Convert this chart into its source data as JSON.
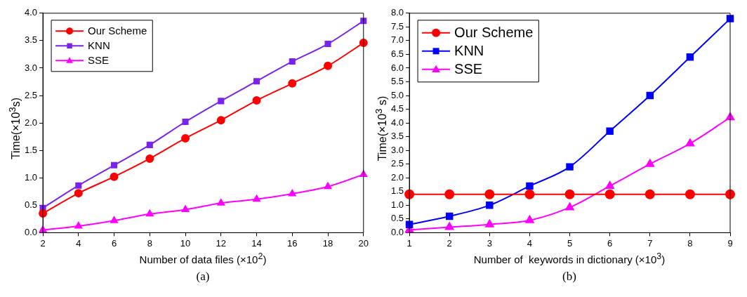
{
  "chart_data": [
    {
      "type": "line",
      "xlabel": "Number of data files (×10$^{2}$)",
      "ylabel": "Time(×10$^{3}$s)",
      "annotations": [
        "(a)"
      ],
      "x": [
        2,
        4,
        6,
        8,
        10,
        12,
        14,
        16,
        18,
        20
      ],
      "xlim": [
        2,
        20
      ],
      "xticks": [
        2,
        4,
        6,
        8,
        10,
        12,
        14,
        16,
        18,
        20
      ],
      "ylim": [
        0,
        4
      ],
      "yticks": [
        {
          "value": 0,
          "label": "0.0"
        },
        0.5,
        {
          "value": 1,
          "label": "1.0"
        },
        1.5,
        {
          "value": 2,
          "label": "2.0"
        },
        2.5,
        {
          "value": 3,
          "label": "3.0"
        },
        3.5,
        {
          "value": 4,
          "label": "4.0"
        }
      ],
      "legend": "top left",
      "grid": false,
      "line_style": "solid",
      "series": [
        {
          "name": "Our Scheme",
          "color": "#ff0000",
          "marker": "circle",
          "values": [
            0.35,
            0.72,
            1.02,
            1.35,
            1.72,
            2.05,
            2.41,
            2.72,
            3.04,
            3.46
          ]
        },
        {
          "name": "KNN",
          "color": "#7a22f0",
          "marker": "square",
          "values": [
            0.45,
            0.86,
            1.23,
            1.6,
            2.02,
            2.4,
            2.76,
            3.12,
            3.44,
            3.86
          ]
        },
        {
          "name": "SSE",
          "color": "#ff00ff",
          "marker": "triangle",
          "values": [
            0.05,
            0.12,
            0.22,
            0.34,
            0.42,
            0.54,
            0.61,
            0.71,
            0.84,
            1.06
          ]
        }
      ]
    },
    {
      "type": "line",
      "xlabel": "Number of  keywords in dictionary (×10$^{3}$)",
      "ylabel": "Time(×10$^{3}$ s)",
      "annotations": [
        "(b)"
      ],
      "x": [
        1,
        2,
        3,
        4,
        5,
        6,
        7,
        8,
        9
      ],
      "xlim": [
        1,
        9
      ],
      "xticks": [
        1,
        2,
        3,
        4,
        5,
        6,
        7,
        8,
        9
      ],
      "ylim": [
        0,
        8
      ],
      "yticks": [
        {
          "value": 0,
          "label": "0.0"
        },
        0.5,
        {
          "value": 1,
          "label": "1.0"
        },
        1.5,
        {
          "value": 2,
          "label": "2.0"
        },
        2.5,
        {
          "value": 3,
          "label": "3.0"
        },
        3.5,
        {
          "value": 4,
          "label": "4.0"
        },
        4.5,
        {
          "value": 5,
          "label": "5.0"
        },
        5.5,
        {
          "value": 6,
          "label": "6.0"
        },
        6.5,
        {
          "value": 7,
          "label": "7.0"
        },
        7.5,
        {
          "value": 8,
          "label": "8.0"
        }
      ],
      "legend": "top left",
      "grid": false,
      "line_style": "solid",
      "series": [
        {
          "name": "Our Scheme",
          "color": "#ff0000",
          "marker": "circle",
          "values": [
            1.4,
            1.4,
            1.4,
            1.4,
            1.4,
            1.4,
            1.4,
            1.4,
            1.4
          ]
        },
        {
          "name": "KNN",
          "color": "#0000ff",
          "marker": "square",
          "values": [
            0.3,
            0.6,
            1.0,
            1.7,
            2.4,
            3.7,
            5.0,
            6.4,
            7.8
          ]
        },
        {
          "name": "SSE",
          "color": "#ff00ff",
          "marker": "triangle",
          "values": [
            0.1,
            0.2,
            0.3,
            0.45,
            0.92,
            1.7,
            2.5,
            3.25,
            4.2
          ]
        }
      ]
    }
  ]
}
